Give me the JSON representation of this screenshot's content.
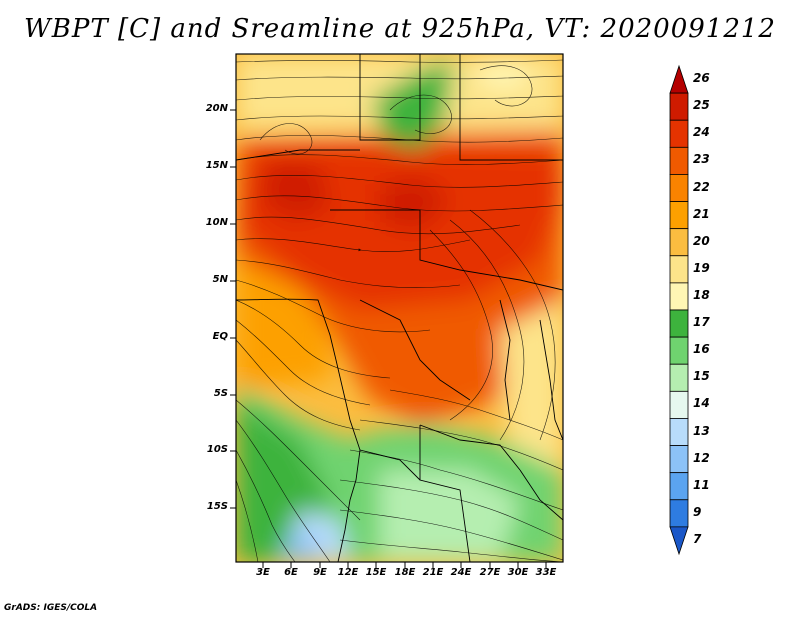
{
  "title": "WBPT [C] and Sreamline at 925hPa, VT: 2020091212",
  "credit": "GrADS: IGES/COLA",
  "map": {
    "variable": "Wet-bulb potential temperature",
    "units": "C",
    "level": "925hPa",
    "valid_time": "2020091212",
    "lat_labels": [
      "20N",
      "15N",
      "10N",
      "5N",
      "EQ",
      "5S",
      "10S",
      "15S"
    ],
    "lon_labels": [
      "3E",
      "6E",
      "9E",
      "12E",
      "15E",
      "18E",
      "21E",
      "24E",
      "27E",
      "30E",
      "33E"
    ]
  },
  "colorbar": {
    "levels": [
      "26",
      "25",
      "24",
      "23",
      "22",
      "21",
      "20",
      "19",
      "18",
      "17",
      "16",
      "15",
      "14",
      "13",
      "12",
      "11",
      "9",
      "7"
    ],
    "colors": [
      "#b40000",
      "#cf1b00",
      "#e53300",
      "#f05a00",
      "#f98300",
      "#fda000",
      "#fbbd40",
      "#fde48a",
      "#fff6b4",
      "#3db33d",
      "#6fd36f",
      "#b5eeb0",
      "#e6f8ef",
      "#b8dcfb",
      "#8cc2f7",
      "#5ba4f0",
      "#2e7ce1",
      "#1a57c8"
    ]
  }
}
